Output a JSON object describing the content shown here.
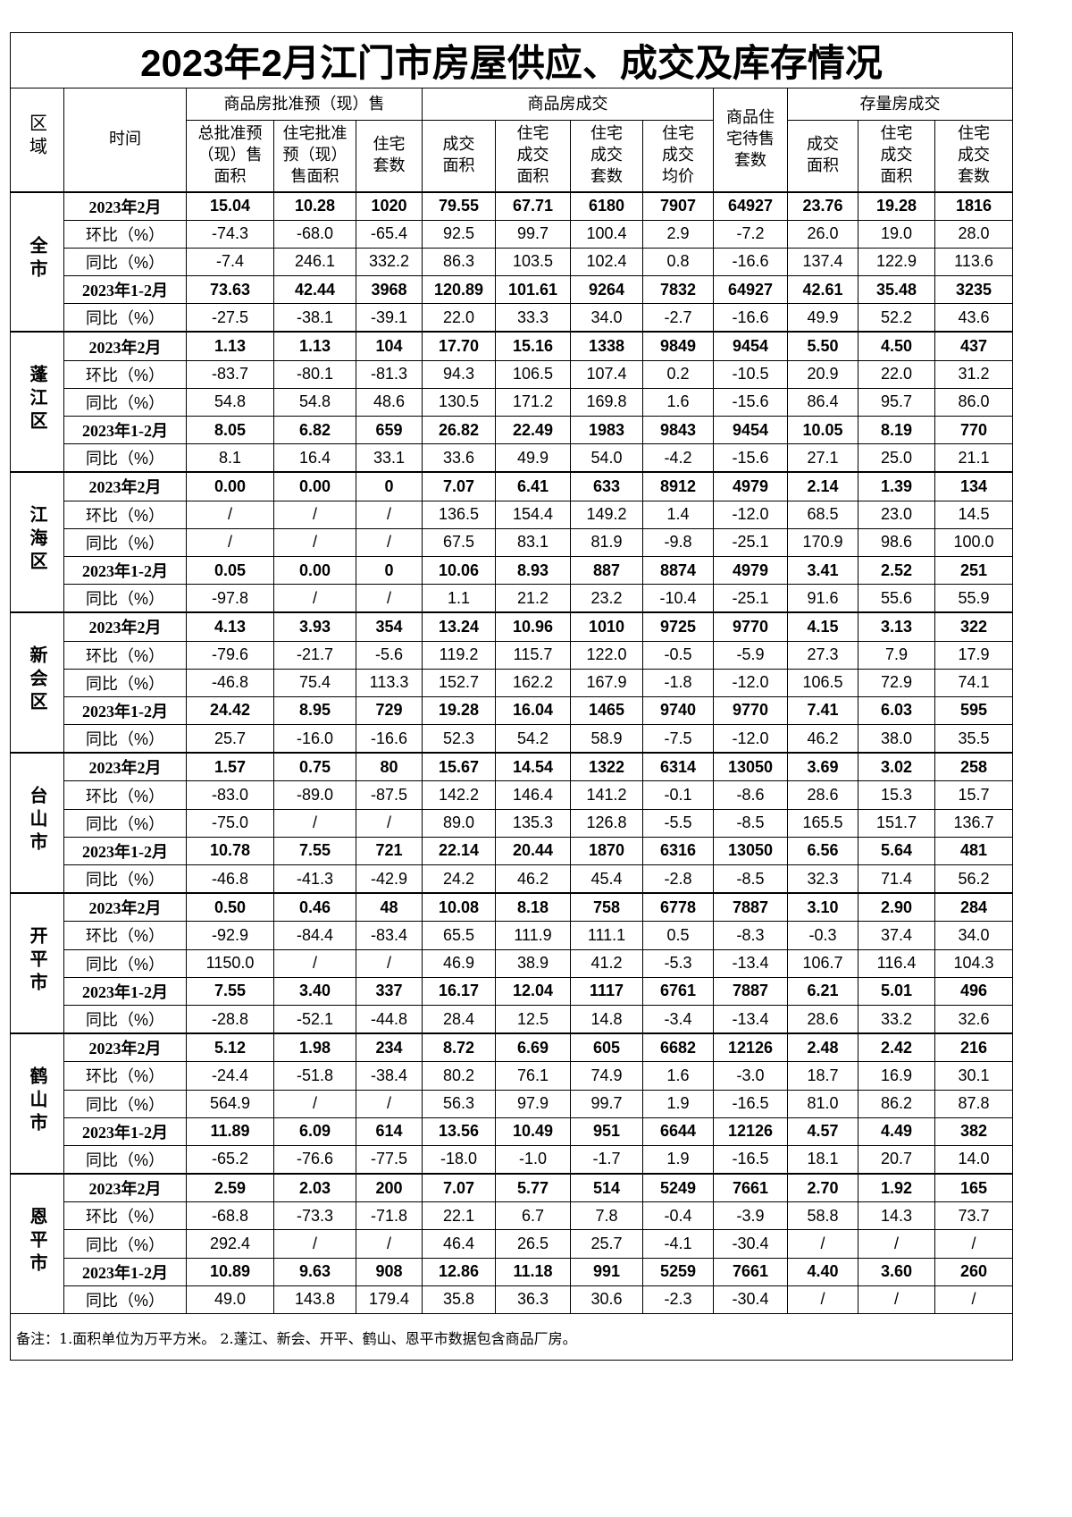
{
  "title": "2023年2月江门市房屋供应、成交及库存情况",
  "headers": {
    "region": "区域",
    "time": "时间",
    "group_supply": "商品房批准预（现）售",
    "group_deal": "商品房成交",
    "unsold": "商品住宅待售套数",
    "group_stock": "存量房成交",
    "cols": [
      "总批准预（现）售面积",
      "住宅批准预（现）售面积",
      "住宅套数",
      "成交面积",
      "住宅成交面积",
      "住宅成交套数",
      "住宅成交均价",
      "商品住宅待售套数",
      "成交面积",
      "住宅成交面积",
      "住宅成交套数"
    ]
  },
  "row_labels": [
    "2023年2月",
    "环比（%）",
    "同比（%）",
    "2023年1-2月",
    "同比（%）"
  ],
  "regions": [
    {
      "name": "全市",
      "rows": [
        [
          "15.04",
          "10.28",
          "1020",
          "79.55",
          "67.71",
          "6180",
          "7907",
          "64927",
          "23.76",
          "19.28",
          "1816"
        ],
        [
          "-74.3",
          "-68.0",
          "-65.4",
          "92.5",
          "99.7",
          "100.4",
          "2.9",
          "-7.2",
          "26.0",
          "19.0",
          "28.0"
        ],
        [
          "-7.4",
          "246.1",
          "332.2",
          "86.3",
          "103.5",
          "102.4",
          "0.8",
          "-16.6",
          "137.4",
          "122.9",
          "113.6"
        ],
        [
          "73.63",
          "42.44",
          "3968",
          "120.89",
          "101.61",
          "9264",
          "7832",
          "64927",
          "42.61",
          "35.48",
          "3235"
        ],
        [
          "-27.5",
          "-38.1",
          "-39.1",
          "22.0",
          "33.3",
          "34.0",
          "-2.7",
          "-16.6",
          "49.9",
          "52.2",
          "43.6"
        ]
      ]
    },
    {
      "name": "蓬江区",
      "rows": [
        [
          "1.13",
          "1.13",
          "104",
          "17.70",
          "15.16",
          "1338",
          "9849",
          "9454",
          "5.50",
          "4.50",
          "437"
        ],
        [
          "-83.7",
          "-80.1",
          "-81.3",
          "94.3",
          "106.5",
          "107.4",
          "0.2",
          "-10.5",
          "20.9",
          "22.0",
          "31.2"
        ],
        [
          "54.8",
          "54.8",
          "48.6",
          "130.5",
          "171.2",
          "169.8",
          "1.6",
          "-15.6",
          "86.4",
          "95.7",
          "86.0"
        ],
        [
          "8.05",
          "6.82",
          "659",
          "26.82",
          "22.49",
          "1983",
          "9843",
          "9454",
          "10.05",
          "8.19",
          "770"
        ],
        [
          "8.1",
          "16.4",
          "33.1",
          "33.6",
          "49.9",
          "54.0",
          "-4.2",
          "-15.6",
          "27.1",
          "25.0",
          "21.1"
        ]
      ]
    },
    {
      "name": "江海区",
      "rows": [
        [
          "0.00",
          "0.00",
          "0",
          "7.07",
          "6.41",
          "633",
          "8912",
          "4979",
          "2.14",
          "1.39",
          "134"
        ],
        [
          "/",
          "/",
          "/",
          "136.5",
          "154.4",
          "149.2",
          "1.4",
          "-12.0",
          "68.5",
          "23.0",
          "14.5"
        ],
        [
          "/",
          "/",
          "/",
          "67.5",
          "83.1",
          "81.9",
          "-9.8",
          "-25.1",
          "170.9",
          "98.6",
          "100.0"
        ],
        [
          "0.05",
          "0.00",
          "0",
          "10.06",
          "8.93",
          "887",
          "8874",
          "4979",
          "3.41",
          "2.52",
          "251"
        ],
        [
          "-97.8",
          "/",
          "/",
          "1.1",
          "21.2",
          "23.2",
          "-10.4",
          "-25.1",
          "91.6",
          "55.6",
          "55.9"
        ]
      ]
    },
    {
      "name": "新会区",
      "rows": [
        [
          "4.13",
          "3.93",
          "354",
          "13.24",
          "10.96",
          "1010",
          "9725",
          "9770",
          "4.15",
          "3.13",
          "322"
        ],
        [
          "-79.6",
          "-21.7",
          "-5.6",
          "119.2",
          "115.7",
          "122.0",
          "-0.5",
          "-5.9",
          "27.3",
          "7.9",
          "17.9"
        ],
        [
          "-46.8",
          "75.4",
          "113.3",
          "152.7",
          "162.2",
          "167.9",
          "-1.8",
          "-12.0",
          "106.5",
          "72.9",
          "74.1"
        ],
        [
          "24.42",
          "8.95",
          "729",
          "19.28",
          "16.04",
          "1465",
          "9740",
          "9770",
          "7.41",
          "6.03",
          "595"
        ],
        [
          "25.7",
          "-16.0",
          "-16.6",
          "52.3",
          "54.2",
          "58.9",
          "-7.5",
          "-12.0",
          "46.2",
          "38.0",
          "35.5"
        ]
      ]
    },
    {
      "name": "台山市",
      "rows": [
        [
          "1.57",
          "0.75",
          "80",
          "15.67",
          "14.54",
          "1322",
          "6314",
          "13050",
          "3.69",
          "3.02",
          "258"
        ],
        [
          "-83.0",
          "-89.0",
          "-87.5",
          "142.2",
          "146.4",
          "141.2",
          "-0.1",
          "-8.6",
          "28.6",
          "15.3",
          "15.7"
        ],
        [
          "-75.0",
          "/",
          "/",
          "89.0",
          "135.3",
          "126.8",
          "-5.5",
          "-8.5",
          "165.5",
          "151.7",
          "136.7"
        ],
        [
          "10.78",
          "7.55",
          "721",
          "22.14",
          "20.44",
          "1870",
          "6316",
          "13050",
          "6.56",
          "5.64",
          "481"
        ],
        [
          "-46.8",
          "-41.3",
          "-42.9",
          "24.2",
          "46.2",
          "45.4",
          "-2.8",
          "-8.5",
          "32.3",
          "71.4",
          "56.2"
        ]
      ]
    },
    {
      "name": "开平市",
      "rows": [
        [
          "0.50",
          "0.46",
          "48",
          "10.08",
          "8.18",
          "758",
          "6778",
          "7887",
          "3.10",
          "2.90",
          "284"
        ],
        [
          "-92.9",
          "-84.4",
          "-83.4",
          "65.5",
          "111.9",
          "111.1",
          "0.5",
          "-8.3",
          "-0.3",
          "37.4",
          "34.0"
        ],
        [
          "1150.0",
          "/",
          "/",
          "46.9",
          "38.9",
          "41.2",
          "-5.3",
          "-13.4",
          "106.7",
          "116.4",
          "104.3"
        ],
        [
          "7.55",
          "3.40",
          "337",
          "16.17",
          "12.04",
          "1117",
          "6761",
          "7887",
          "6.21",
          "5.01",
          "496"
        ],
        [
          "-28.8",
          "-52.1",
          "-44.8",
          "28.4",
          "12.5",
          "14.8",
          "-3.4",
          "-13.4",
          "28.6",
          "33.2",
          "32.6"
        ]
      ]
    },
    {
      "name": "鹤山市",
      "rows": [
        [
          "5.12",
          "1.98",
          "234",
          "8.72",
          "6.69",
          "605",
          "6682",
          "12126",
          "2.48",
          "2.42",
          "216"
        ],
        [
          "-24.4",
          "-51.8",
          "-38.4",
          "80.2",
          "76.1",
          "74.9",
          "1.6",
          "-3.0",
          "18.7",
          "16.9",
          "30.1"
        ],
        [
          "564.9",
          "/",
          "/",
          "56.3",
          "97.9",
          "99.7",
          "1.9",
          "-16.5",
          "81.0",
          "86.2",
          "87.8"
        ],
        [
          "11.89",
          "6.09",
          "614",
          "13.56",
          "10.49",
          "951",
          "6644",
          "12126",
          "4.57",
          "4.49",
          "382"
        ],
        [
          "-65.2",
          "-76.6",
          "-77.5",
          "-18.0",
          "-1.0",
          "-1.7",
          "1.9",
          "-16.5",
          "18.1",
          "20.7",
          "14.0"
        ]
      ]
    },
    {
      "name": "恩平市",
      "rows": [
        [
          "2.59",
          "2.03",
          "200",
          "7.07",
          "5.77",
          "514",
          "5249",
          "7661",
          "2.70",
          "1.92",
          "165"
        ],
        [
          "-68.8",
          "-73.3",
          "-71.8",
          "22.1",
          "6.7",
          "7.8",
          "-0.4",
          "-3.9",
          "58.8",
          "14.3",
          "73.7"
        ],
        [
          "292.4",
          "/",
          "/",
          "46.4",
          "26.5",
          "25.7",
          "-4.1",
          "-30.4",
          "/",
          "/",
          "/"
        ],
        [
          "10.89",
          "9.63",
          "908",
          "12.86",
          "11.18",
          "991",
          "5259",
          "7661",
          "4.40",
          "3.60",
          "260"
        ],
        [
          "49.0",
          "143.8",
          "179.4",
          "35.8",
          "36.3",
          "30.6",
          "-2.3",
          "-30.4",
          "/",
          "/",
          "/"
        ]
      ]
    }
  ],
  "footnote": "备注：1.面积单位为万平方米。 2.蓬江、新会、开平、鹤山、恩平市数据包含商品厂房。"
}
